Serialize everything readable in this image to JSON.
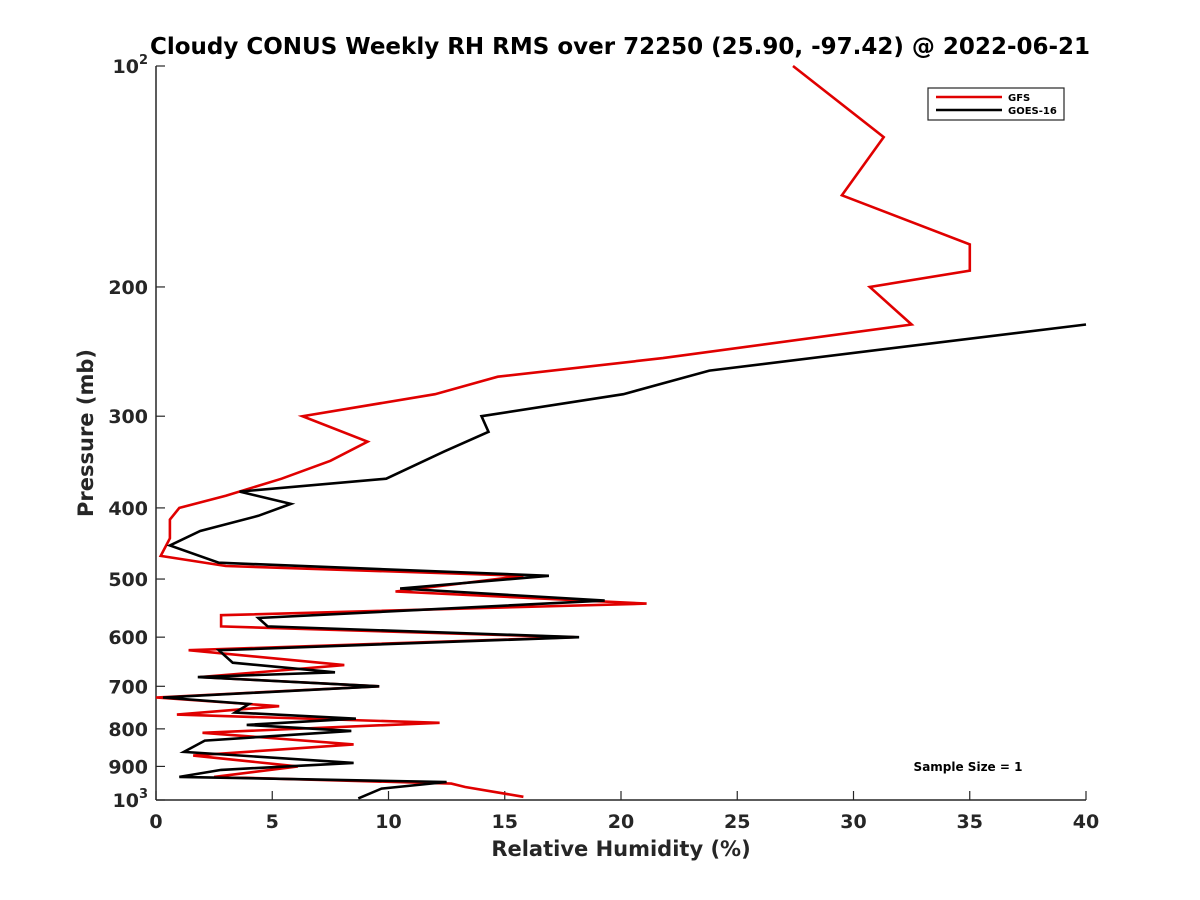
{
  "chart_data": {
    "type": "line",
    "title": "Cloudy CONUS Weekly RH RMS over 72250 (25.90, -97.42) @ 2022-06-21",
    "xlabel": "Relative Humidity (%)",
    "ylabel": "Pressure (mb)",
    "xlim": [
      0,
      40
    ],
    "ylim": [
      100,
      1000
    ],
    "y_scale": "log",
    "y_reversed": true,
    "grid": false,
    "x_ticks": [
      0,
      5,
      10,
      15,
      20,
      25,
      30,
      35,
      40
    ],
    "x_tick_labels": [
      "0",
      "5",
      "10",
      "15",
      "20",
      "25",
      "30",
      "35",
      "40"
    ],
    "y_ticks": [
      {
        "value": 100,
        "base": "10",
        "sup": "2"
      },
      {
        "value": 200,
        "label": "200"
      },
      {
        "value": 300,
        "label": "300"
      },
      {
        "value": 400,
        "label": "400"
      },
      {
        "value": 500,
        "label": "500"
      },
      {
        "value": 600,
        "label": "600"
      },
      {
        "value": 700,
        "label": "700"
      },
      {
        "value": 800,
        "label": "800"
      },
      {
        "value": 900,
        "label": "900"
      },
      {
        "value": 1000,
        "base": "10",
        "sup": "3"
      }
    ],
    "legend": {
      "position": "top-right"
    },
    "annotation": "Sample Size = 1",
    "series": [
      {
        "name": "GFS",
        "color": "#e00000",
        "points": [
          [
            27.4,
            100
          ],
          [
            31.3,
            125
          ],
          [
            29.5,
            150
          ],
          [
            35.0,
            175
          ],
          [
            35.0,
            190
          ],
          [
            30.7,
            200
          ],
          [
            32.5,
            225
          ],
          [
            21.8,
            250
          ],
          [
            14.7,
            265
          ],
          [
            12.0,
            280
          ],
          [
            6.3,
            300
          ],
          [
            9.1,
            325
          ],
          [
            7.5,
            345
          ],
          [
            5.4,
            365
          ],
          [
            3.0,
            385
          ],
          [
            1.0,
            400
          ],
          [
            0.6,
            415
          ],
          [
            0.6,
            440
          ],
          [
            0.2,
            465
          ],
          [
            3.0,
            480
          ],
          [
            15.8,
            495
          ],
          [
            10.3,
            520
          ],
          [
            21.1,
            540
          ],
          [
            2.8,
            560
          ],
          [
            2.8,
            580
          ],
          [
            18.0,
            600
          ],
          [
            1.4,
            625
          ],
          [
            8.1,
            655
          ],
          [
            1.9,
            680
          ],
          [
            9.6,
            700
          ],
          [
            0.0,
            725
          ],
          [
            5.3,
            745
          ],
          [
            0.9,
            765
          ],
          [
            12.2,
            785
          ],
          [
            2.0,
            810
          ],
          [
            8.5,
            840
          ],
          [
            1.6,
            870
          ],
          [
            6.1,
            900
          ],
          [
            2.5,
            930
          ],
          [
            12.7,
            950
          ],
          [
            13.3,
            960
          ],
          [
            15.8,
            990
          ]
        ]
      },
      {
        "name": "GOES-16",
        "color": "#000000",
        "points": [
          [
            40.0,
            225
          ],
          [
            23.8,
            260
          ],
          [
            20.1,
            280
          ],
          [
            14.0,
            300
          ],
          [
            14.3,
            315
          ],
          [
            12.4,
            335
          ],
          [
            9.9,
            365
          ],
          [
            3.6,
            380
          ],
          [
            5.8,
            395
          ],
          [
            4.4,
            410
          ],
          [
            1.9,
            430
          ],
          [
            0.6,
            450
          ],
          [
            2.7,
            475
          ],
          [
            16.9,
            495
          ],
          [
            10.5,
            515
          ],
          [
            19.3,
            535
          ],
          [
            4.4,
            565
          ],
          [
            4.8,
            580
          ],
          [
            18.2,
            600
          ],
          [
            2.7,
            625
          ],
          [
            3.3,
            650
          ],
          [
            7.7,
            670
          ],
          [
            1.8,
            680
          ],
          [
            9.6,
            700
          ],
          [
            0.3,
            725
          ],
          [
            4.0,
            740
          ],
          [
            3.4,
            760
          ],
          [
            8.6,
            775
          ],
          [
            3.9,
            790
          ],
          [
            8.4,
            805
          ],
          [
            2.1,
            830
          ],
          [
            1.2,
            860
          ],
          [
            8.5,
            890
          ],
          [
            2.8,
            910
          ],
          [
            1.0,
            930
          ],
          [
            12.5,
            945
          ],
          [
            9.7,
            965
          ],
          [
            8.7,
            995
          ]
        ]
      }
    ]
  }
}
